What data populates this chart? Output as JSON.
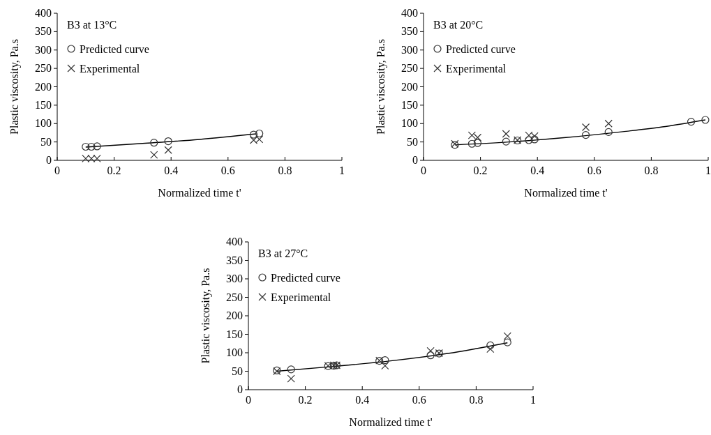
{
  "chart_data": [
    {
      "type": "scatter",
      "xlabel": "Normalized time t'",
      "ylabel": "Plastic viscosity, Pa.s",
      "legend_title": "B3 at 13°C",
      "legend": "top left",
      "xlim": [
        0,
        1
      ],
      "ylim": [
        0,
        400
      ],
      "xticks": [
        0,
        0.2,
        0.4,
        0.6,
        0.8,
        1
      ],
      "yticks": [
        0,
        50,
        100,
        150,
        200,
        250,
        300,
        350,
        400
      ],
      "series": [
        {
          "type": "line",
          "color": "#000000",
          "marker": "none",
          "x": [
            0.1,
            0.3,
            0.5,
            0.7
          ],
          "values": [
            36,
            46,
            57,
            72
          ]
        },
        {
          "name": "Predicted curve",
          "color": "#333333",
          "marker": "circle",
          "x": [
            0.1,
            0.12,
            0.14,
            0.34,
            0.39,
            0.69,
            0.71
          ],
          "values": [
            37,
            37,
            38,
            48,
            52,
            70,
            73
          ]
        },
        {
          "name": "Experimental",
          "color": "#333333",
          "marker": "cross",
          "x": [
            0.1,
            0.12,
            0.14,
            0.34,
            0.39,
            0.69,
            0.71
          ],
          "values": [
            5,
            5,
            5,
            15,
            28,
            55,
            57
          ]
        }
      ]
    },
    {
      "type": "scatter",
      "xlabel": "Normalized time t'",
      "ylabel": "Plastic viscosity, Pa.s",
      "legend_title": "B3 at 20°C",
      "legend": "top left",
      "xlim": [
        0,
        1
      ],
      "ylim": [
        0,
        400
      ],
      "xticks": [
        0,
        0.2,
        0.4,
        0.6,
        0.8,
        1
      ],
      "yticks": [
        0,
        50,
        100,
        150,
        200,
        250,
        300,
        350,
        400
      ],
      "series": [
        {
          "type": "line",
          "color": "#000000",
          "marker": "none",
          "x": [
            0.11,
            0.3,
            0.5,
            0.7,
            0.85,
            0.99
          ],
          "values": [
            42,
            50,
            62,
            78,
            92,
            110
          ]
        },
        {
          "name": "Predicted curve",
          "color": "#333333",
          "marker": "circle",
          "x": [
            0.11,
            0.17,
            0.19,
            0.29,
            0.33,
            0.37,
            0.39,
            0.57,
            0.65,
            0.94,
            0.99
          ],
          "values": [
            42,
            45,
            47,
            51,
            54,
            55,
            57,
            69,
            77,
            105,
            110
          ]
        },
        {
          "name": "Experimental",
          "color": "#333333",
          "marker": "cross",
          "x": [
            0.11,
            0.17,
            0.19,
            0.29,
            0.33,
            0.37,
            0.39,
            0.57,
            0.65
          ],
          "values": [
            45,
            68,
            62,
            72,
            55,
            68,
            66,
            90,
            100
          ]
        }
      ]
    },
    {
      "type": "scatter",
      "xlabel": "Normalized time t'",
      "ylabel": "Plastic viscosity, Pa.s",
      "legend_title": "B3 at 27°C",
      "legend": "top left",
      "xlim": [
        0,
        1
      ],
      "ylim": [
        0,
        400
      ],
      "xticks": [
        0,
        0.2,
        0.4,
        0.6,
        0.8,
        1
      ],
      "yticks": [
        0,
        50,
        100,
        150,
        200,
        250,
        300,
        350,
        400
      ],
      "series": [
        {
          "type": "line",
          "color": "#000000",
          "marker": "none",
          "x": [
            0.1,
            0.3,
            0.5,
            0.7,
            0.91
          ],
          "values": [
            50,
            63,
            78,
            98,
            127
          ]
        },
        {
          "name": "Predicted curve",
          "color": "#333333",
          "marker": "circle",
          "x": [
            0.1,
            0.15,
            0.28,
            0.3,
            0.31,
            0.46,
            0.48,
            0.64,
            0.67,
            0.85,
            0.91
          ],
          "values": [
            52,
            55,
            64,
            65,
            66,
            78,
            80,
            93,
            98,
            120,
            128
          ]
        },
        {
          "name": "Experimental",
          "color": "#333333",
          "marker": "cross",
          "x": [
            0.1,
            0.15,
            0.28,
            0.3,
            0.31,
            0.46,
            0.48,
            0.64,
            0.67,
            0.85,
            0.91
          ],
          "values": [
            50,
            30,
            65,
            66,
            66,
            79,
            65,
            105,
            99,
            110,
            145
          ]
        }
      ]
    }
  ]
}
